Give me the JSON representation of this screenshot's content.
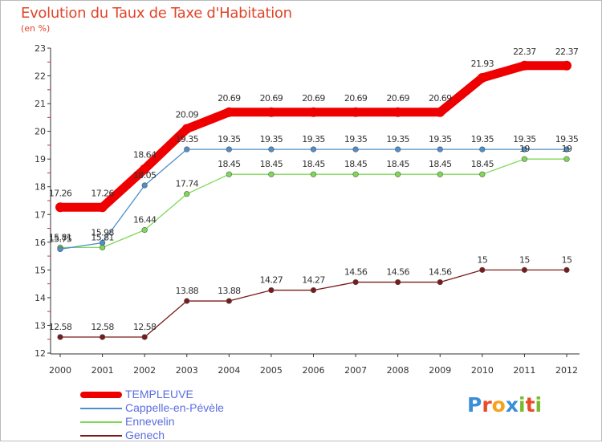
{
  "header": {
    "title": "Evolution du Taux de Taxe d'Habitation",
    "unit": "(en %)"
  },
  "logo": {
    "text": "Proxiti",
    "letters": [
      "P",
      "r",
      "o",
      "x",
      "i",
      "t",
      "i"
    ],
    "letter_colors": [
      "#3a8fd8",
      "#e94b2a",
      "#f6a21d",
      "#3a8fd8",
      "#7ab92e",
      "#e94b2a",
      "#7ab92e"
    ]
  },
  "chart_data": {
    "type": "line",
    "title": "Evolution du Taux de Taxe d'Habitation",
    "ylabel": "(en %)",
    "xlabel": "",
    "ylim": [
      12,
      23
    ],
    "yticks": [
      "12",
      "13",
      "14",
      "15",
      "16",
      "17",
      "18",
      "19",
      "20",
      "21",
      "22",
      "23"
    ],
    "categories": [
      "2000",
      "2001",
      "2002",
      "2003",
      "2004",
      "2005",
      "2006",
      "2007",
      "2008",
      "2009",
      "2010",
      "2011",
      "2012"
    ],
    "grid": false,
    "legend": "bottom-left",
    "series": [
      {
        "name": "TEMPLEUVE",
        "color": "#ee0000",
        "style": "thick",
        "values": [
          17.26,
          17.26,
          18.64,
          20.09,
          20.69,
          20.69,
          20.69,
          20.69,
          20.69,
          20.69,
          21.93,
          22.37,
          22.37
        ],
        "labels": [
          "17.26",
          "17.26",
          "18.64",
          "20.09",
          "20.69",
          "20.69",
          "20.69",
          "20.69",
          "20.69",
          "20.69",
          "21.93",
          "22.37",
          "22.37"
        ]
      },
      {
        "name": "Cappelle-en-Pévèle",
        "color": "#4f8fc9",
        "style": "thin",
        "values": [
          15.75,
          15.98,
          18.05,
          19.35,
          19.35,
          19.35,
          19.35,
          19.35,
          19.35,
          19.35,
          19.35,
          19.35,
          19.35
        ],
        "labels": [
          "15.75",
          "15.98",
          "18.05",
          "19.35",
          "19.35",
          "19.35",
          "19.35",
          "19.35",
          "19.35",
          "19.35",
          "19.35",
          "19.35",
          "19.35"
        ]
      },
      {
        "name": "Ennevelin",
        "color": "#7ed957",
        "style": "thin",
        "values": [
          15.81,
          15.81,
          16.44,
          17.74,
          18.45,
          18.45,
          18.45,
          18.45,
          18.45,
          18.45,
          18.45,
          19,
          19
        ],
        "labels": [
          "15.81",
          "15.81",
          "16.44",
          "17.74",
          "18.45",
          "18.45",
          "18.45",
          "18.45",
          "18.45",
          "18.45",
          "18.45",
          "19",
          "19"
        ]
      },
      {
        "name": "Genech",
        "color": "#7a1a1a",
        "style": "thin",
        "values": [
          12.58,
          12.58,
          12.58,
          13.88,
          13.88,
          14.27,
          14.27,
          14.56,
          14.56,
          14.56,
          15,
          15,
          15
        ],
        "labels": [
          "12.58",
          "12.58",
          "12.58",
          "13.88",
          "13.88",
          "14.27",
          "14.27",
          "14.56",
          "14.56",
          "14.56",
          "15",
          "15",
          "15"
        ]
      }
    ]
  }
}
